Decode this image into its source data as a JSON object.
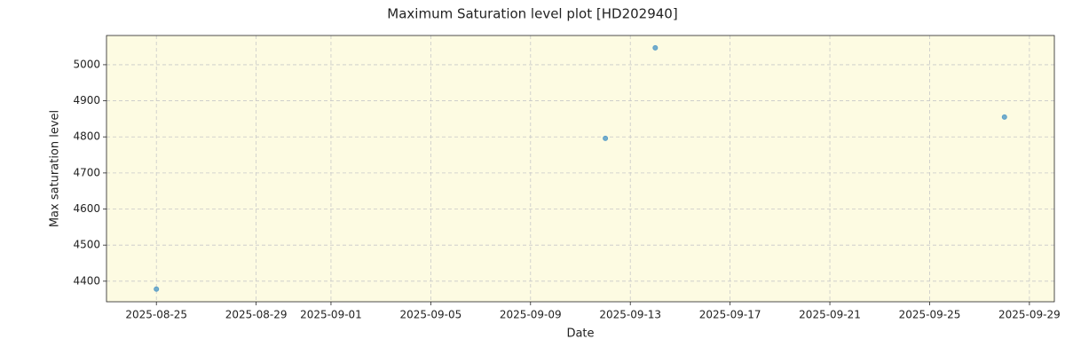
{
  "chart_data": {
    "type": "scatter",
    "title": "Maximum Saturation level plot [HD202940]",
    "x_label": "Date",
    "y_label": "Max saturation level",
    "x": [
      "2025-08-25",
      "2025-09-12",
      "2025-09-14",
      "2025-09-28"
    ],
    "values": [
      4378,
      4796,
      5047,
      4855
    ],
    "color": "#5b9fc8",
    "xlim": [
      "2025-08-23",
      "2025-09-30"
    ],
    "xticks": [
      "2025-08-25",
      "2025-08-29",
      "2025-09-01",
      "2025-09-05",
      "2025-09-09",
      "2025-09-13",
      "2025-09-17",
      "2025-09-21",
      "2025-09-25",
      "2025-09-29"
    ],
    "ylim": [
      4343,
      5081
    ],
    "yticks": [
      4400,
      4500,
      4600,
      4700,
      4800,
      4900,
      5000
    ],
    "grid": true,
    "background": "#fdfbe2"
  }
}
